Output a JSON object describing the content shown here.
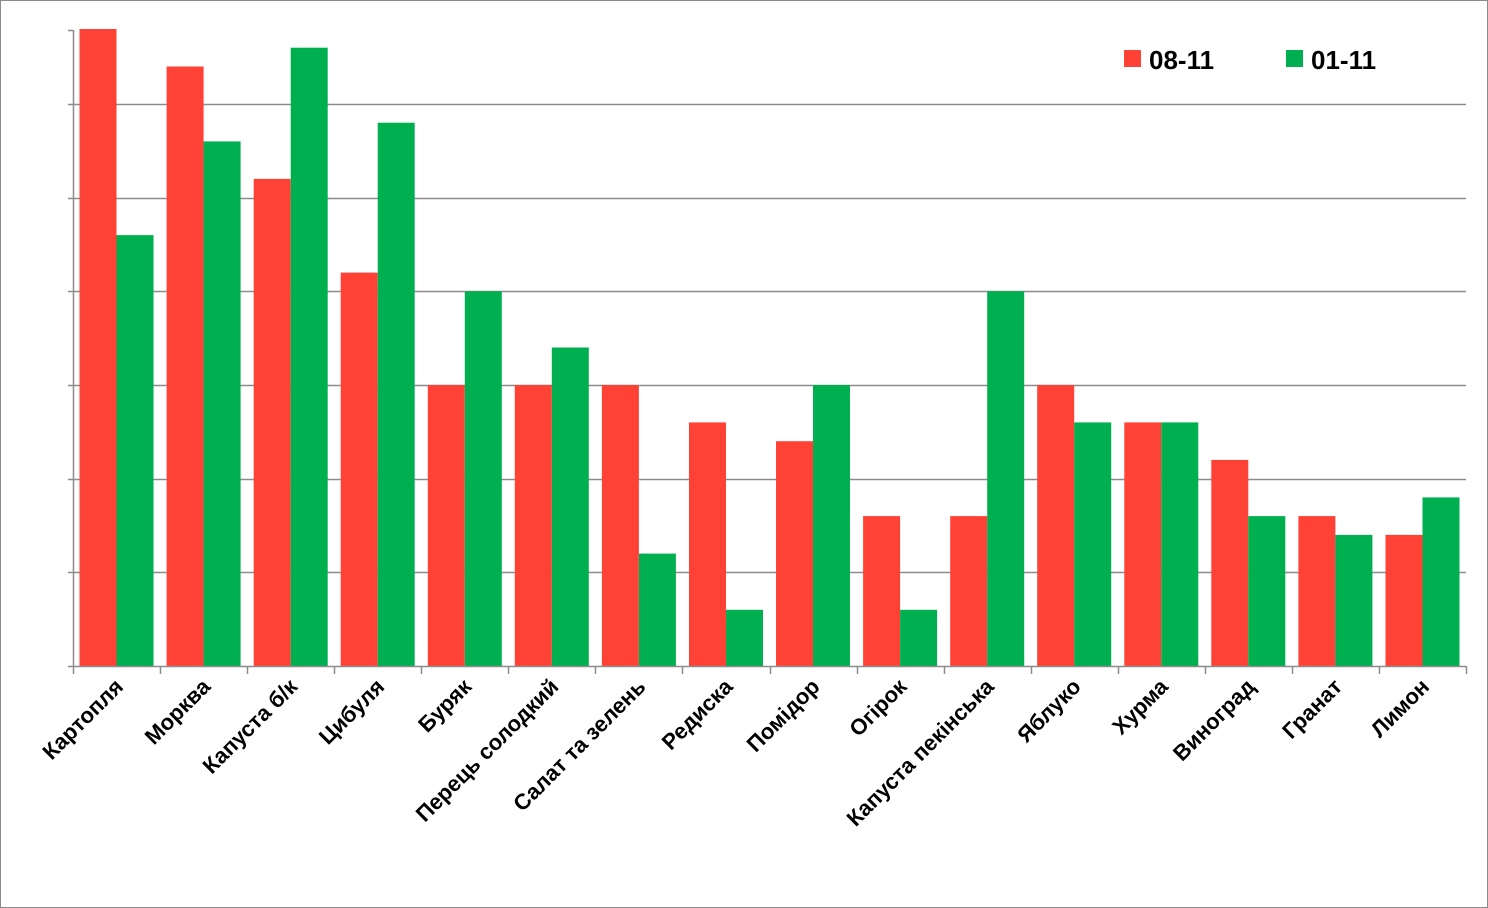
{
  "chart_data": {
    "type": "bar",
    "title": "",
    "xlabel": "",
    "ylabel": "",
    "ylim": [
      0,
      6.8
    ],
    "grid": true,
    "legend_position": "top-right",
    "categories": [
      "Картопля",
      "Морква",
      "Капуста б/к",
      "Цибуля",
      "Буряк",
      "Перець солодкий",
      "Салат та зелень",
      "Редиска",
      "Помідор",
      "Огірок",
      "Капуста пекінська",
      "Яблуко",
      "Хурма",
      "Виноград",
      "Гранат",
      "Лимон"
    ],
    "series": [
      {
        "name": "08-11",
        "color": "#ff4136",
        "values": [
          6.8,
          6.4,
          5.2,
          4.2,
          3.0,
          3.0,
          3.0,
          2.6,
          2.4,
          1.6,
          1.6,
          3.0,
          2.6,
          2.2,
          1.6,
          1.4
        ]
      },
      {
        "name": "01-11",
        "color": "#00b050",
        "values": [
          4.6,
          5.6,
          6.6,
          5.8,
          4.0,
          3.4,
          1.2,
          0.6,
          3.0,
          0.6,
          4.0,
          2.6,
          2.6,
          1.6,
          1.4,
          1.8
        ]
      }
    ]
  }
}
